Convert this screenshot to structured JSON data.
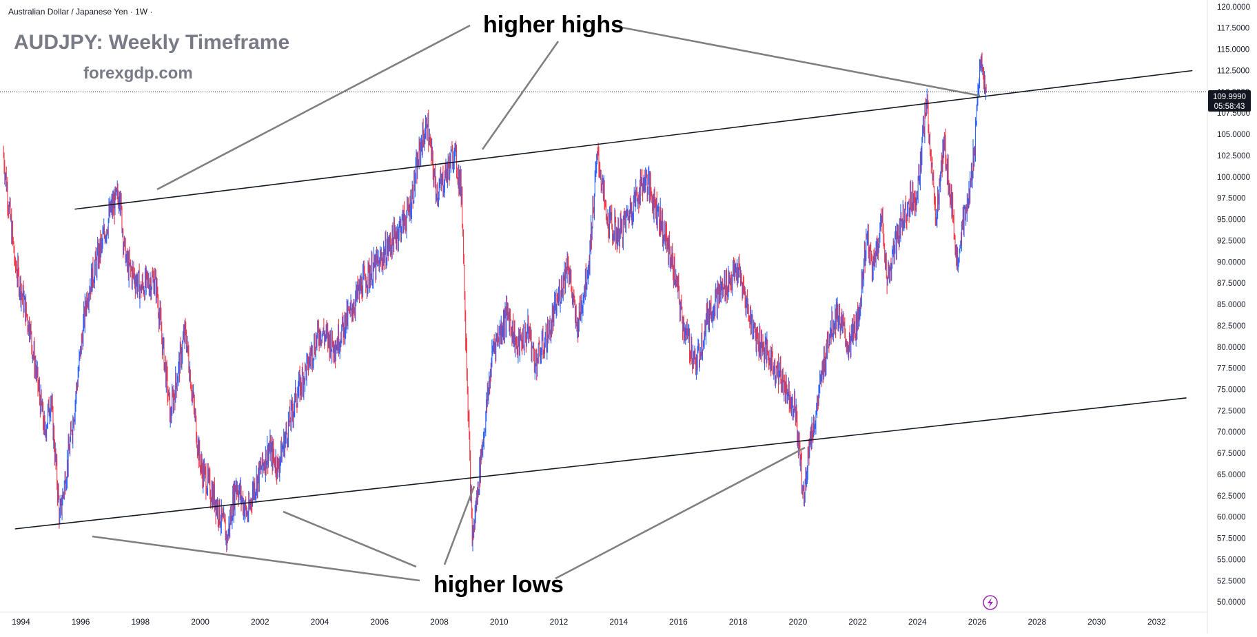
{
  "header": {
    "symbol_label": "Australian Dollar / Japanese Yen · 1W ·"
  },
  "overlay": {
    "title": "AUDJPY: Weekly Timeframe",
    "website": "forexgdp.com"
  },
  "annotations": {
    "highs_label": "higher highs",
    "lows_label": "higher lows"
  },
  "price_tag": {
    "price": "109.9990",
    "countdown": "05:58:43"
  },
  "colors": {
    "up": "#2962ff",
    "down": "#f23645",
    "trendline": "#131722",
    "callout": "#808080",
    "background": "#ffffff",
    "price_tag_bg": "#131722"
  },
  "chart_data": {
    "type": "line",
    "title": "AUDJPY: Weekly Timeframe",
    "xlabel": "",
    "ylabel": "",
    "xlim": [
      1993.3,
      2033.7
    ],
    "ylim": [
      48.8,
      120.8
    ],
    "x_ticks": [
      "1994",
      "1996",
      "1998",
      "2000",
      "2002",
      "2004",
      "2006",
      "2008",
      "2010",
      "2012",
      "2014",
      "2016",
      "2018",
      "2020",
      "2022",
      "2024",
      "2026",
      "2028",
      "2030",
      "2032"
    ],
    "y_ticks": [
      "120.0000",
      "117.5000",
      "115.0000",
      "112.5000",
      "110.0000",
      "107.5000",
      "105.0000",
      "102.5000",
      "100.0000",
      "97.5000",
      "95.0000",
      "92.5000",
      "90.0000",
      "87.5000",
      "85.0000",
      "82.5000",
      "80.0000",
      "77.5000",
      "75.0000",
      "72.5000",
      "70.0000",
      "67.5000",
      "65.0000",
      "62.5000",
      "60.0000",
      "57.5000",
      "55.0000",
      "52.5000",
      "50.0000"
    ],
    "grid": false,
    "series": [
      {
        "name": "AUDJPY",
        "x": [
          1993.4,
          1993.8,
          1994.3,
          1994.8,
          1995.0,
          1995.3,
          1995.7,
          1996.2,
          1996.7,
          1997.0,
          1997.3,
          1997.5,
          1998.0,
          1998.5,
          1999.0,
          1999.5,
          2000.0,
          2000.5,
          2000.9,
          2001.2,
          2001.6,
          2001.75,
          2002.3,
          2002.6,
          2003.2,
          2003.6,
          2004.0,
          2004.5,
          2005.0,
          2005.5,
          2006.0,
          2006.5,
          2007.0,
          2007.4,
          2007.6,
          2007.9,
          2008.2,
          2008.5,
          2008.75,
          2008.9,
          2009.1,
          2009.4,
          2009.8,
          2010.3,
          2010.6,
          2011.0,
          2011.2,
          2011.7,
          2012.3,
          2012.6,
          2013.0,
          2013.3,
          2013.6,
          2014.0,
          2014.5,
          2014.9,
          2015.3,
          2015.8,
          2016.2,
          2016.6,
          2017.0,
          2017.5,
          2018.0,
          2018.5,
          2019.0,
          2019.5,
          2019.9,
          2020.2,
          2020.35,
          2020.6,
          2021.0,
          2021.3,
          2021.7,
          2022.0,
          2022.3,
          2022.5,
          2022.8,
          2023.0,
          2023.4,
          2023.7,
          2024.0,
          2024.3,
          2024.5,
          2024.6,
          2024.9,
          2025.2,
          2025.3,
          2025.5,
          2025.7,
          2025.9,
          2026.0,
          2026.1,
          2026.2,
          2026.3
        ],
        "values": [
          103.0,
          90.0,
          82.0,
          70.0,
          74.0,
          60.0,
          70.0,
          86.0,
          92.0,
          96.0,
          98.0,
          90.0,
          87.0,
          88.0,
          72.0,
          82.0,
          66.0,
          62.0,
          57.5,
          64.0,
          60.0,
          63.0,
          68.0,
          66.0,
          74.0,
          78.0,
          82.0,
          80.0,
          84.0,
          88.0,
          90.0,
          93.0,
          96.0,
          104.0,
          106.0,
          98.0,
          100.0,
          103.0,
          98.0,
          80.0,
          57.0,
          67.0,
          80.0,
          84.0,
          80.0,
          82.0,
          78.0,
          82.0,
          90.0,
          82.0,
          90.0,
          103.0,
          95.0,
          93.0,
          97.0,
          100.0,
          96.0,
          90.0,
          82.0,
          78.0,
          84.0,
          87.0,
          89.0,
          82.0,
          79.0,
          76.0,
          73.0,
          62.0,
          68.0,
          72.0,
          81.0,
          84.0,
          80.0,
          83.0,
          93.0,
          89.0,
          95.0,
          88.0,
          94.0,
          97.0,
          98.0,
          109.0,
          100.0,
          95.0,
          104.0,
          95.0,
          90.0,
          94.0,
          97.0,
          103.0,
          109.0,
          113.5,
          112.0,
          110.0
        ]
      }
    ],
    "trendlines": [
      {
        "name": "upper channel",
        "x1": 1995.8,
        "y1": 96.2,
        "x2": 2033.2,
        "y2": 112.5
      },
      {
        "name": "lower channel",
        "x1": 1993.8,
        "y1": 58.6,
        "x2": 2033.0,
        "y2": 74.0
      }
    ],
    "current_price": 109.999
  }
}
